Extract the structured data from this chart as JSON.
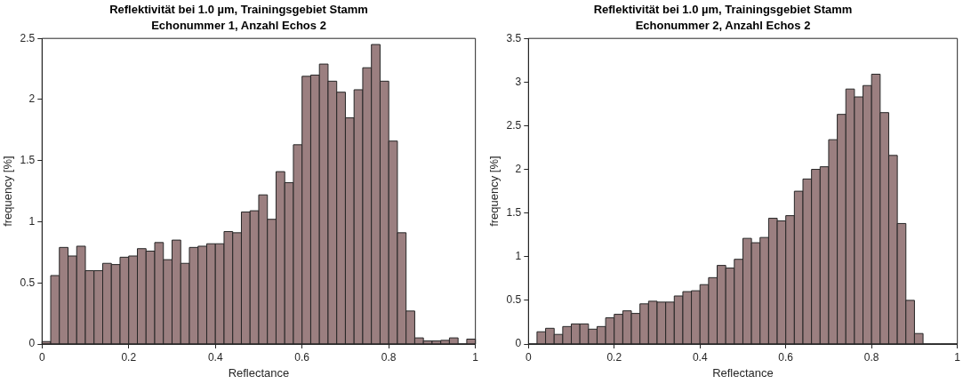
{
  "chart_data": [
    {
      "type": "histogram",
      "title": "Reflektivität bei 1.0 µm, Trainingsgebiet Stamm",
      "subtitle": "Echonummer 1, Anzahl Echos 2",
      "xlabel": "Reflectance",
      "ylabel": "frequency [%]",
      "bins": [
        0,
        0.02,
        0.04,
        0.06,
        0.08,
        0.1,
        0.12,
        0.14,
        0.16,
        0.18,
        0.2,
        0.22,
        0.24,
        0.26,
        0.28,
        0.3,
        0.32,
        0.34,
        0.36,
        0.38,
        0.4,
        0.42,
        0.44,
        0.46,
        0.48,
        0.5,
        0.52,
        0.54,
        0.56,
        0.58,
        0.6,
        0.62,
        0.64,
        0.66,
        0.68,
        0.7,
        0.72,
        0.74,
        0.76,
        0.78,
        0.8,
        0.82,
        0.84,
        0.86,
        0.88,
        0.9,
        0.92,
        0.94,
        0.96,
        0.98,
        1
      ],
      "values": [
        0.02,
        0.56,
        0.79,
        0.72,
        0.8,
        0.6,
        0.6,
        0.66,
        0.65,
        0.71,
        0.72,
        0.78,
        0.76,
        0.83,
        0.69,
        0.85,
        0.66,
        0.79,
        0.8,
        0.82,
        0.82,
        0.92,
        0.91,
        1.08,
        1.09,
        1.22,
        1.02,
        1.41,
        1.32,
        1.63,
        2.19,
        2.2,
        2.29,
        2.15,
        2.06,
        1.85,
        2.08,
        2.26,
        2.45,
        2.15,
        1.66,
        0.91,
        0.27,
        0.05,
        0.025,
        0.025,
        0.03,
        0.05,
        0,
        0.04
      ],
      "color": "#9b7f80",
      "xlim": [
        0,
        1
      ],
      "xticks": [
        0,
        0.2,
        0.4,
        0.6,
        0.8,
        1
      ],
      "ylim": [
        0,
        2.5
      ],
      "yticks": [
        0,
        0.5,
        1,
        1.5,
        2,
        2.5
      ],
      "grid": false,
      "legend": false
    },
    {
      "type": "histogram",
      "title": "Reflektivität bei 1.0 µm, Trainingsgebiet Stamm",
      "subtitle": "Echonummer 2, Anzahl Echos 2",
      "xlabel": "Reflectance",
      "ylabel": "frequency [%]",
      "bins": [
        0,
        0.02,
        0.04,
        0.06,
        0.08,
        0.1,
        0.12,
        0.14,
        0.16,
        0.18,
        0.2,
        0.22,
        0.24,
        0.26,
        0.28,
        0.3,
        0.32,
        0.34,
        0.36,
        0.38,
        0.4,
        0.42,
        0.44,
        0.46,
        0.48,
        0.5,
        0.52,
        0.54,
        0.56,
        0.58,
        0.6,
        0.62,
        0.64,
        0.66,
        0.68,
        0.7,
        0.72,
        0.74,
        0.76,
        0.78,
        0.8,
        0.82,
        0.84,
        0.86,
        0.88,
        0.9,
        0.92,
        0.94,
        0.96,
        0.98,
        1
      ],
      "values": [
        0,
        0.14,
        0.18,
        0.11,
        0.2,
        0.23,
        0.23,
        0.17,
        0.2,
        0.3,
        0.34,
        0.38,
        0.35,
        0.46,
        0.49,
        0.48,
        0.48,
        0.55,
        0.6,
        0.61,
        0.68,
        0.76,
        0.9,
        0.87,
        0.97,
        1.21,
        1.16,
        1.22,
        1.44,
        1.41,
        1.47,
        1.75,
        1.89,
        2,
        2.03,
        2.34,
        2.63,
        2.92,
        2.83,
        2.96,
        3.09,
        2.65,
        2.16,
        1.38,
        0.5,
        0.12,
        0,
        0,
        0,
        0
      ],
      "color": "#9b7f80",
      "xlim": [
        0,
        1
      ],
      "xticks": [
        0,
        0.2,
        0.4,
        0.6,
        0.8,
        1
      ],
      "ylim": [
        0,
        3.5
      ],
      "yticks": [
        0,
        0.5,
        1,
        1.5,
        2,
        2.5,
        3,
        3.5
      ],
      "grid": false,
      "legend": false
    }
  ]
}
